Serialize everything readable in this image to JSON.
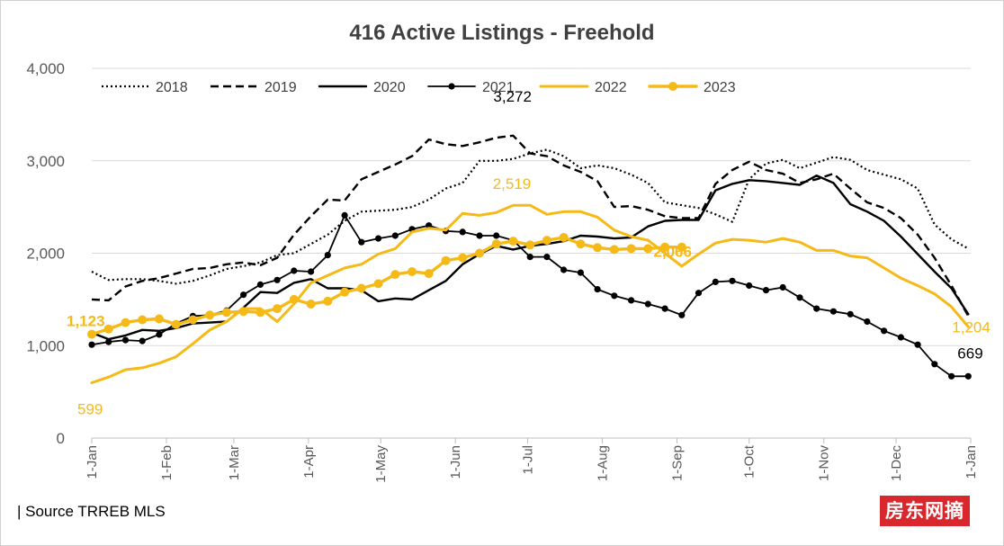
{
  "chart_data": {
    "type": "line",
    "title": "416 Active Listings - Freehold",
    "source": "| Source TRREB MLS",
    "watermark": "房东网摘",
    "ylim": [
      0,
      4000
    ],
    "xlim": [
      0,
      365
    ],
    "y_ticks": [
      {
        "value": 0,
        "label": "0"
      },
      {
        "value": 1000,
        "label": "1,000"
      },
      {
        "value": 2000,
        "label": "2,000"
      },
      {
        "value": 3000,
        "label": "3,000"
      },
      {
        "value": 4000,
        "label": "4,000"
      }
    ],
    "x_ticks": [
      {
        "day": 0,
        "label": "1-Jan"
      },
      {
        "day": 31,
        "label": "1-Feb"
      },
      {
        "day": 59,
        "label": "1-Mar"
      },
      {
        "day": 90,
        "label": "1-Apr"
      },
      {
        "day": 120,
        "label": "1-May"
      },
      {
        "day": 151,
        "label": "1-Jun"
      },
      {
        "day": 181,
        "label": "1-Jul"
      },
      {
        "day": 212,
        "label": "1-Aug"
      },
      {
        "day": 243,
        "label": "1-Sep"
      },
      {
        "day": 273,
        "label": "1-Oct"
      },
      {
        "day": 304,
        "label": "1-Nov"
      },
      {
        "day": 334,
        "label": "1-Dec"
      },
      {
        "day": 365,
        "label": "1-Jan"
      }
    ],
    "grid": true,
    "legend_position": "top",
    "series": [
      {
        "name": "2018",
        "color": "#000000",
        "style": "dotted",
        "markers": false,
        "x": [
          0,
          7,
          14,
          21,
          28,
          35,
          42,
          49,
          56,
          63,
          70,
          77,
          84,
          91,
          98,
          105,
          112,
          119,
          126,
          133,
          140,
          147,
          154,
          161,
          168,
          175,
          182,
          189,
          196,
          203,
          210,
          217,
          224,
          231,
          238,
          245,
          252,
          259,
          266,
          273,
          280,
          287,
          294,
          301,
          308,
          315,
          322,
          329,
          336,
          343,
          350,
          357,
          364
        ],
        "values": [
          1800,
          1710,
          1720,
          1720,
          1700,
          1670,
          1700,
          1760,
          1830,
          1860,
          1900,
          1980,
          2000,
          2100,
          2200,
          2350,
          2450,
          2460,
          2470,
          2500,
          2580,
          2700,
          2760,
          3000,
          3000,
          3020,
          3080,
          3120,
          3050,
          2920,
          2950,
          2920,
          2850,
          2760,
          2550,
          2520,
          2490,
          2420,
          2340,
          2800,
          2970,
          3010,
          2920,
          2980,
          3040,
          3010,
          2900,
          2850,
          2800,
          2700,
          2310,
          2150,
          2050
        ]
      },
      {
        "name": "2019",
        "color": "#000000",
        "style": "dashed",
        "markers": false,
        "x": [
          0,
          7,
          14,
          21,
          28,
          35,
          42,
          49,
          56,
          63,
          70,
          77,
          84,
          91,
          98,
          105,
          112,
          119,
          126,
          133,
          140,
          147,
          154,
          161,
          168,
          175,
          182,
          189,
          196,
          203,
          210,
          217,
          224,
          231,
          238,
          245,
          252,
          259,
          266,
          273,
          280,
          287,
          294,
          301,
          308,
          315,
          322,
          329,
          336,
          343,
          350,
          357,
          364
        ],
        "values": [
          1500,
          1490,
          1640,
          1700,
          1730,
          1780,
          1830,
          1840,
          1880,
          1900,
          1870,
          1950,
          2200,
          2400,
          2580,
          2570,
          2800,
          2880,
          2960,
          3050,
          3230,
          3180,
          3160,
          3200,
          3250,
          3272,
          3080,
          3050,
          2950,
          2880,
          2780,
          2500,
          2510,
          2470,
          2400,
          2380,
          2380,
          2750,
          2900,
          2990,
          2900,
          2860,
          2760,
          2800,
          2860,
          2700,
          2550,
          2490,
          2380,
          2200,
          1950,
          1650,
          1320
        ]
      },
      {
        "name": "2020",
        "color": "#000000",
        "style": "solid",
        "markers": false,
        "x": [
          0,
          7,
          14,
          21,
          28,
          35,
          42,
          49,
          56,
          63,
          70,
          77,
          84,
          91,
          98,
          105,
          112,
          119,
          126,
          133,
          140,
          147,
          154,
          161,
          168,
          175,
          182,
          189,
          196,
          203,
          210,
          217,
          224,
          231,
          238,
          245,
          252,
          259,
          266,
          273,
          280,
          287,
          294,
          301,
          308,
          315,
          322,
          329,
          336,
          343,
          350,
          357,
          364
        ],
        "values": [
          1140,
          1070,
          1110,
          1170,
          1160,
          1190,
          1240,
          1250,
          1260,
          1410,
          1580,
          1570,
          1680,
          1720,
          1620,
          1620,
          1600,
          1480,
          1510,
          1500,
          1600,
          1700,
          1880,
          1990,
          2080,
          2040,
          2080,
          2100,
          2130,
          2190,
          2180,
          2160,
          2170,
          2290,
          2350,
          2360,
          2360,
          2680,
          2750,
          2790,
          2780,
          2760,
          2740,
          2840,
          2760,
          2530,
          2450,
          2350,
          2180,
          1990,
          1800,
          1620,
          1340
        ]
      },
      {
        "name": "2021",
        "color": "#000000",
        "style": "solid",
        "markers": true,
        "x": [
          0,
          7,
          14,
          21,
          28,
          35,
          42,
          49,
          56,
          63,
          70,
          77,
          84,
          91,
          98,
          105,
          112,
          119,
          126,
          133,
          140,
          147,
          154,
          161,
          168,
          175,
          182,
          189,
          196,
          203,
          210,
          217,
          224,
          231,
          238,
          245,
          252,
          259,
          266,
          273,
          280,
          287,
          294,
          301,
          308,
          315,
          322,
          329,
          336,
          343,
          350,
          357,
          364
        ],
        "values": [
          1010,
          1040,
          1060,
          1050,
          1120,
          1240,
          1320,
          1330,
          1380,
          1550,
          1660,
          1710,
          1810,
          1800,
          1980,
          2410,
          2120,
          2160,
          2190,
          2260,
          2300,
          2240,
          2230,
          2190,
          2190,
          2140,
          1960,
          1960,
          1820,
          1790,
          1610,
          1540,
          1490,
          1450,
          1400,
          1330,
          1570,
          1690,
          1700,
          1650,
          1600,
          1630,
          1520,
          1400,
          1370,
          1340,
          1260,
          1160,
          1090,
          1010,
          800,
          669,
          669
        ]
      },
      {
        "name": "2022",
        "color": "#F5BA17",
        "style": "solid",
        "markers": false,
        "x": [
          0,
          7,
          14,
          21,
          28,
          35,
          42,
          49,
          56,
          63,
          70,
          77,
          84,
          91,
          98,
          105,
          112,
          119,
          126,
          133,
          140,
          147,
          154,
          161,
          168,
          175,
          182,
          189,
          196,
          203,
          210,
          217,
          224,
          231,
          238,
          245,
          252,
          259,
          266,
          273,
          280,
          287,
          294,
          301,
          308,
          315,
          322,
          329,
          336,
          343,
          350,
          357,
          364
        ],
        "values": [
          599,
          660,
          740,
          760,
          810,
          880,
          1020,
          1170,
          1260,
          1400,
          1400,
          1260,
          1450,
          1680,
          1760,
          1840,
          1880,
          1990,
          2050,
          2230,
          2270,
          2250,
          2430,
          2410,
          2440,
          2519,
          2519,
          2420,
          2450,
          2450,
          2390,
          2250,
          2180,
          2140,
          2000,
          1860,
          1990,
          2110,
          2150,
          2140,
          2120,
          2160,
          2120,
          2030,
          2030,
          1970,
          1950,
          1840,
          1730,
          1650,
          1560,
          1420,
          1204
        ]
      },
      {
        "name": "2023",
        "color": "#F5BA17",
        "style": "solid",
        "markers": true,
        "x": [
          0,
          7,
          14,
          21,
          28,
          35,
          42,
          49,
          56,
          63,
          70,
          77,
          84,
          91,
          98,
          105,
          112,
          119,
          126,
          133,
          140,
          147,
          154,
          161,
          168,
          175,
          182,
          189,
          196,
          203,
          210,
          217,
          224,
          231,
          238,
          245
        ],
        "values": [
          1123,
          1180,
          1250,
          1280,
          1290,
          1230,
          1280,
          1330,
          1360,
          1370,
          1360,
          1400,
          1500,
          1450,
          1480,
          1580,
          1620,
          1670,
          1770,
          1800,
          1780,
          1920,
          1950,
          2000,
          2100,
          2130,
          2090,
          2140,
          2170,
          2100,
          2060,
          2040,
          2050,
          2050,
          2066,
          2066
        ]
      }
    ],
    "annotations": [
      {
        "text": "3,272",
        "color": "#000000",
        "bold": false,
        "x": 172,
        "y": 3272
      },
      {
        "text": "2,519",
        "color": "#F5BA17",
        "bold": false,
        "x": 168,
        "y": 2519
      },
      {
        "text": "2,066",
        "color": "#F5BA17",
        "bold": true,
        "x": 240,
        "y": 2066
      },
      {
        "text": "1,123",
        "color": "#F5BA17",
        "bold": true,
        "x": 0,
        "y": 1123
      },
      {
        "text": "599",
        "color": "#F5BA17",
        "bold": false,
        "x": 0,
        "y": 599
      },
      {
        "text": "669",
        "color": "#000000",
        "bold": false,
        "x": 364,
        "y": 669
      },
      {
        "text": "1,204",
        "color": "#F5BA17",
        "bold": false,
        "x": 364,
        "y": 1204
      }
    ]
  }
}
